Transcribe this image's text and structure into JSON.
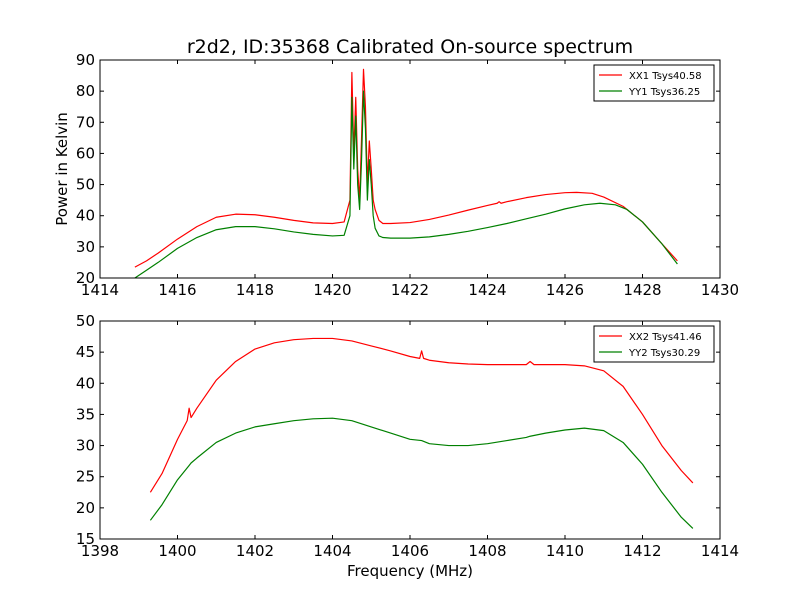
{
  "title": "r2d2, ID:35368 Calibrated On-source spectrum",
  "chart_data": [
    {
      "type": "line",
      "title": "r2d2, ID:35368 Calibrated On-source spectrum",
      "xlabel": "",
      "ylabel": "Power in Kelvin",
      "xlim": [
        1414,
        1430
      ],
      "ylim": [
        20,
        90
      ],
      "x_ticks": [
        1414,
        1416,
        1418,
        1420,
        1422,
        1424,
        1426,
        1428,
        1430
      ],
      "y_ticks": [
        20,
        30,
        40,
        50,
        60,
        70,
        80,
        90
      ],
      "grid": false,
      "legend_position": "top-right",
      "series": [
        {
          "name": "XX1 Tsys40.58",
          "color": "#ff0000",
          "x": [
            1414.9,
            1415.2,
            1415.5,
            1416.0,
            1416.5,
            1417.0,
            1417.5,
            1418.0,
            1418.5,
            1419.0,
            1419.5,
            1420.0,
            1420.3,
            1420.45,
            1420.5,
            1420.55,
            1420.6,
            1420.65,
            1420.7,
            1420.75,
            1420.8,
            1420.85,
            1420.9,
            1420.95,
            1421.0,
            1421.05,
            1421.1,
            1421.2,
            1421.3,
            1421.5,
            1422.0,
            1422.5,
            1423.0,
            1423.5,
            1424.0,
            1424.25,
            1424.3,
            1424.35,
            1424.5,
            1425.0,
            1425.5,
            1426.0,
            1426.3,
            1426.7,
            1427.0,
            1427.5,
            1428.0,
            1428.5,
            1428.9
          ],
          "y": [
            23.5,
            25.5,
            28.0,
            32.5,
            36.5,
            39.5,
            40.5,
            40.3,
            39.5,
            38.5,
            37.7,
            37.5,
            38.0,
            45.0,
            86.0,
            60.0,
            78.0,
            55.0,
            45.0,
            65.0,
            87.0,
            75.0,
            50.0,
            64.0,
            55.0,
            45.0,
            42.0,
            38.5,
            37.5,
            37.5,
            37.8,
            38.8,
            40.2,
            41.8,
            43.3,
            44.0,
            44.5,
            44.0,
            44.5,
            45.8,
            46.8,
            47.4,
            47.5,
            47.2,
            46.0,
            43.0,
            38.0,
            31.0,
            25.5
          ]
        },
        {
          "name": "YY1 Tsys36.25",
          "color": "#008000",
          "x": [
            1414.9,
            1415.2,
            1415.5,
            1416.0,
            1416.5,
            1417.0,
            1417.5,
            1418.0,
            1418.5,
            1419.0,
            1419.5,
            1420.0,
            1420.3,
            1420.45,
            1420.5,
            1420.55,
            1420.6,
            1420.65,
            1420.7,
            1420.75,
            1420.8,
            1420.85,
            1420.9,
            1420.95,
            1421.0,
            1421.05,
            1421.1,
            1421.2,
            1421.3,
            1421.5,
            1422.0,
            1422.5,
            1423.0,
            1423.5,
            1424.0,
            1424.5,
            1425.0,
            1425.5,
            1426.0,
            1426.5,
            1426.9,
            1427.3,
            1427.6,
            1428.0,
            1428.5,
            1428.9
          ],
          "y": [
            20.0,
            22.5,
            25.0,
            29.5,
            33.0,
            35.5,
            36.5,
            36.5,
            35.8,
            34.8,
            34.0,
            33.5,
            33.7,
            40.0,
            78.0,
            55.0,
            72.0,
            50.0,
            42.0,
            58.0,
            80.0,
            68.0,
            45.0,
            58.0,
            50.0,
            40.0,
            36.0,
            33.5,
            33.0,
            32.8,
            32.8,
            33.2,
            34.0,
            35.0,
            36.2,
            37.5,
            39.0,
            40.5,
            42.2,
            43.5,
            44.0,
            43.5,
            42.0,
            38.0,
            31.0,
            24.5
          ]
        }
      ]
    },
    {
      "type": "line",
      "title": "",
      "xlabel": "Frequency (MHz)",
      "ylabel": "",
      "xlim": [
        1398,
        1414
      ],
      "ylim": [
        15,
        50
      ],
      "x_ticks": [
        1398,
        1400,
        1402,
        1404,
        1406,
        1408,
        1410,
        1412,
        1414
      ],
      "y_ticks": [
        15,
        20,
        25,
        30,
        35,
        40,
        45,
        50
      ],
      "grid": false,
      "legend_position": "top-right",
      "series": [
        {
          "name": "XX2 Tsys41.46",
          "color": "#ff0000",
          "x": [
            1399.3,
            1399.6,
            1400.0,
            1400.25,
            1400.3,
            1400.35,
            1400.5,
            1401.0,
            1401.5,
            1402.0,
            1402.5,
            1403.0,
            1403.5,
            1404.0,
            1404.5,
            1405.0,
            1405.5,
            1406.0,
            1406.25,
            1406.3,
            1406.35,
            1406.5,
            1407.0,
            1407.5,
            1408.0,
            1408.5,
            1409.0,
            1409.1,
            1409.2,
            1409.5,
            1410.0,
            1410.5,
            1411.0,
            1411.5,
            1412.0,
            1412.5,
            1413.0,
            1413.3
          ],
          "y": [
            22.5,
            25.5,
            31.0,
            34.0,
            36.0,
            34.5,
            36.0,
            40.5,
            43.5,
            45.5,
            46.5,
            47.0,
            47.2,
            47.2,
            46.8,
            46.0,
            45.2,
            44.3,
            44.0,
            45.2,
            44.0,
            43.7,
            43.3,
            43.1,
            43.0,
            43.0,
            43.0,
            43.5,
            43.0,
            43.0,
            43.0,
            42.8,
            42.0,
            39.5,
            35.0,
            30.0,
            26.0,
            24.0
          ]
        },
        {
          "name": "YY2 Tsys30.29",
          "color": "#008000",
          "x": [
            1399.3,
            1399.6,
            1400.0,
            1400.3,
            1400.35,
            1400.5,
            1401.0,
            1401.5,
            1402.0,
            1402.5,
            1403.0,
            1403.5,
            1404.0,
            1404.5,
            1405.0,
            1405.5,
            1406.0,
            1406.3,
            1406.5,
            1407.0,
            1407.5,
            1408.0,
            1408.5,
            1409.0,
            1409.1,
            1409.5,
            1410.0,
            1410.5,
            1411.0,
            1411.5,
            1412.0,
            1412.5,
            1413.0,
            1413.3
          ],
          "y": [
            18.0,
            20.5,
            24.5,
            26.8,
            27.2,
            28.0,
            30.5,
            32.0,
            33.0,
            33.5,
            34.0,
            34.3,
            34.4,
            34.0,
            33.0,
            32.0,
            31.0,
            30.8,
            30.3,
            30.0,
            30.0,
            30.3,
            30.8,
            31.3,
            31.5,
            32.0,
            32.5,
            32.8,
            32.4,
            30.5,
            27.0,
            22.5,
            18.5,
            16.7
          ]
        }
      ]
    }
  ]
}
